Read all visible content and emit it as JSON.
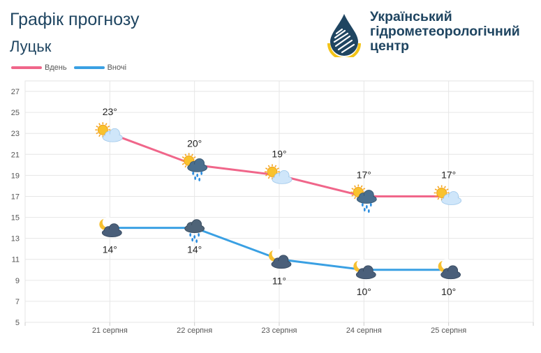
{
  "header": {
    "title": "Графік прогнозу",
    "city": "Луцьк"
  },
  "logo": {
    "line1": "Український",
    "line2": "гідрометеорологічний",
    "line3": "центр"
  },
  "legend": {
    "day_label": "Вдень",
    "night_label": "Вночі"
  },
  "colors": {
    "day": "#f0668a",
    "night": "#3aa0e3",
    "text_dark": "#1f4561"
  },
  "chart_data": {
    "type": "line",
    "categories": [
      "21 серпня",
      "22 серпня",
      "23 серпня",
      "24 серпня",
      "25 серпня"
    ],
    "series": [
      {
        "name": "Вдень",
        "values": [
          23,
          20,
          19,
          17,
          17
        ],
        "labels": [
          "23°",
          "20°",
          "19°",
          "17°",
          "17°"
        ],
        "icons": [
          "sun-cloud-icon",
          "sun-cloud-rain-icon",
          "sun-cloud-icon",
          "sun-cloud-rain-icon",
          "sun-cloud-icon"
        ]
      },
      {
        "name": "Вночі",
        "values": [
          14,
          14,
          11,
          10,
          10
        ],
        "labels": [
          "14°",
          "14°",
          "11°",
          "10°",
          "10°"
        ],
        "icons": [
          "moon-cloud-icon",
          "rain-cloud-icon",
          "moon-cloud-icon",
          "moon-cloud-icon",
          "moon-cloud-icon"
        ]
      }
    ],
    "yticks": [
      5,
      7,
      9,
      11,
      13,
      15,
      17,
      19,
      21,
      23,
      25,
      27
    ],
    "ylim": [
      5,
      28
    ],
    "grid": true,
    "legend_position": "top-left"
  }
}
